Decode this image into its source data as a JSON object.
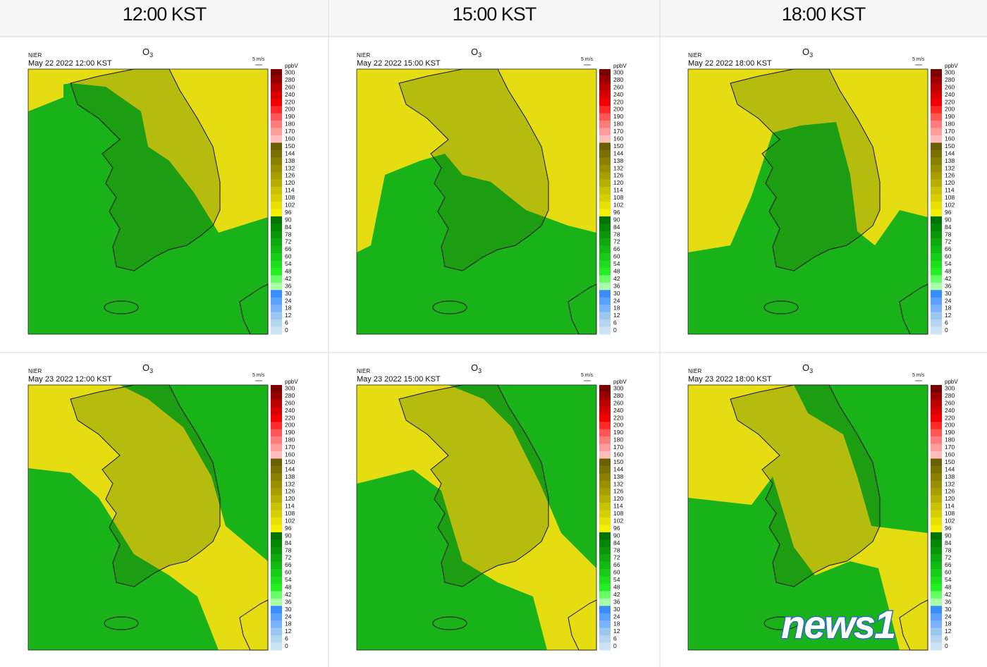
{
  "header": {
    "columns": [
      "12:00 KST",
      "15:00 KST",
      "18:00 KST"
    ]
  },
  "panels": [
    {
      "agency": "NIER",
      "title_base": "O",
      "title_sub": "3",
      "timestamp": "May 22 2022 12:00 KST",
      "wind_scale": "5 m/s",
      "unit": "ppbV"
    },
    {
      "agency": "NIER",
      "title_base": "O",
      "title_sub": "3",
      "timestamp": "May 22 2022 15:00 KST",
      "wind_scale": "5 m/s",
      "unit": "ppbV"
    },
    {
      "agency": "NIER",
      "title_base": "O",
      "title_sub": "3",
      "timestamp": "May 22 2022 18:00 KST",
      "wind_scale": "5 m/s",
      "unit": "ppbV"
    },
    {
      "agency": "NIER",
      "title_base": "O",
      "title_sub": "3",
      "timestamp": "May 23 2022 12:00 KST",
      "wind_scale": "5 m/s",
      "unit": "ppbV"
    },
    {
      "agency": "NIER",
      "title_base": "O",
      "title_sub": "3",
      "timestamp": "May 23 2022 15:00 KST",
      "wind_scale": "5 m/s",
      "unit": "ppbV"
    },
    {
      "agency": "NIER",
      "title_base": "O",
      "title_sub": "3",
      "timestamp": "May 23 2022 18:00 KST",
      "wind_scale": "5 m/s",
      "unit": "ppbV"
    }
  ],
  "colorbar": {
    "labels": [
      300,
      280,
      260,
      240,
      220,
      200,
      190,
      180,
      170,
      160,
      150,
      144,
      138,
      132,
      126,
      120,
      114,
      108,
      102,
      96,
      90,
      84,
      78,
      72,
      66,
      60,
      54,
      48,
      42,
      36,
      30,
      24,
      18,
      12,
      6,
      0
    ]
  },
  "logo": "news1"
}
